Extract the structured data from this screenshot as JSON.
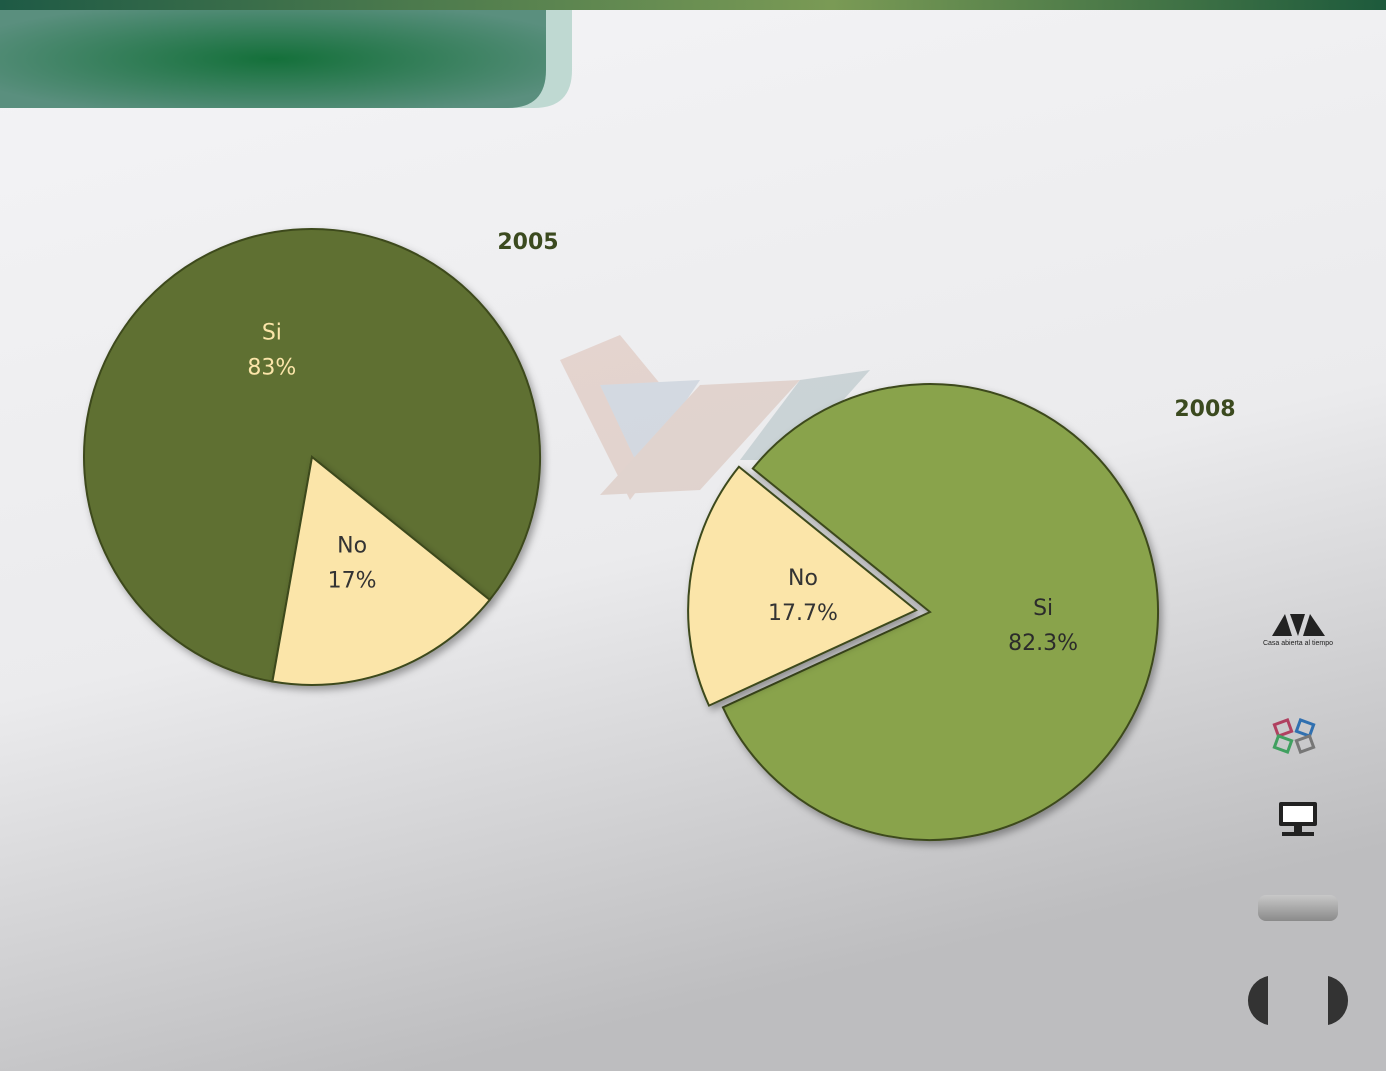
{
  "chart_data": [
    {
      "type": "pie",
      "title": "2005",
      "categories": [
        "Si",
        "No"
      ],
      "values": [
        83,
        17
      ],
      "value_labels": [
        "83%",
        "17%"
      ],
      "colors": [
        "#5f7030",
        "#fbe5a9"
      ]
    },
    {
      "type": "pie",
      "title": "2008",
      "categories": [
        "Si",
        "No"
      ],
      "values": [
        82.3,
        17.7
      ],
      "value_labels": [
        "82.3%",
        "17.7%"
      ],
      "colors": [
        "#89a34c",
        "#fbe5a9"
      ]
    }
  ],
  "logo_text": "Casa abierta al tiempo"
}
